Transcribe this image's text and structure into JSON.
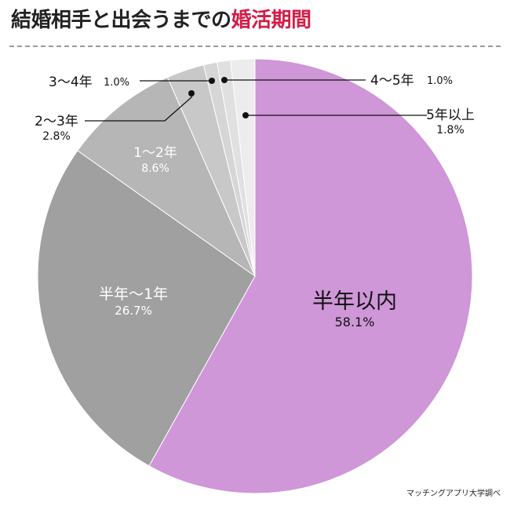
{
  "title": {
    "main": "結婚相手と出会うまでの",
    "accent": "婚活期間",
    "accent_color": "#d11e48"
  },
  "source": "マッチングアプリ大学調べ",
  "chart_data": {
    "type": "pie",
    "title": "結婚相手と出会うまでの婚活期間",
    "slices": [
      {
        "label": "半年以内",
        "value": 58.1,
        "value_label": "58.1%",
        "color": "#cf96d8"
      },
      {
        "label": "半年〜1年",
        "value": 26.7,
        "value_label": "26.7%",
        "color": "#a0a0a0"
      },
      {
        "label": "1〜2年",
        "value": 8.6,
        "value_label": "8.6%",
        "color": "#b6b6b6"
      },
      {
        "label": "2〜3年",
        "value": 2.8,
        "value_label": "2.8%",
        "color": "#c8c8c8"
      },
      {
        "label": "3〜4年",
        "value": 1.0,
        "value_label": "1.0%",
        "color": "#d6d6d6"
      },
      {
        "label": "4〜5年",
        "value": 1.0,
        "value_label": "1.0%",
        "color": "#e0e0e0"
      },
      {
        "label": "5年以上",
        "value": 1.8,
        "value_label": "1.8%",
        "color": "#ececec"
      }
    ]
  }
}
